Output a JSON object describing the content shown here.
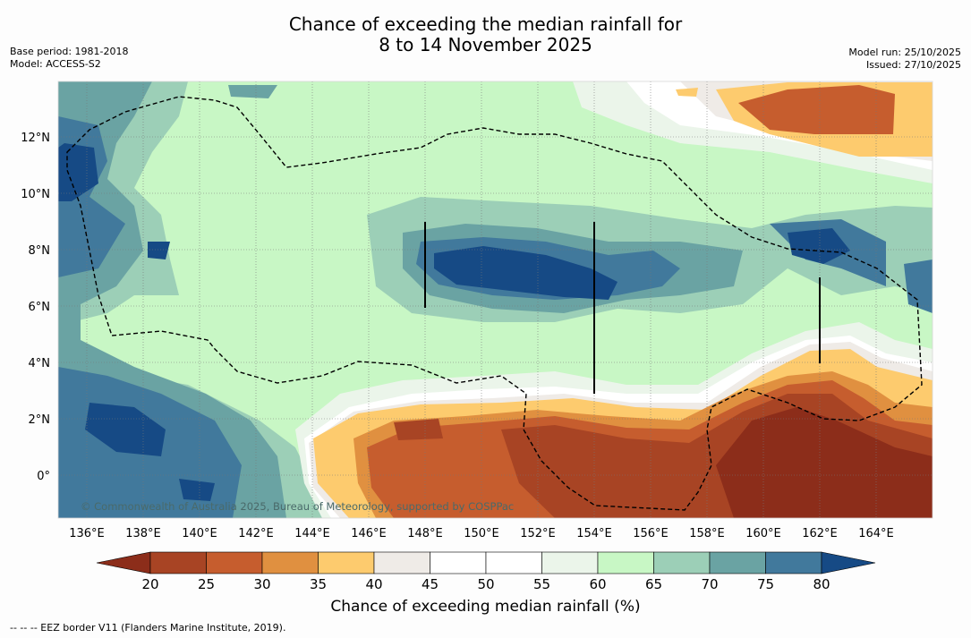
{
  "header": {
    "title_line1": "Chance of exceeding the median rainfall for",
    "title_line2": "8 to 14 November 2025",
    "base_period": "Base period: 1981-2018",
    "model": "Model: ACCESS-S2",
    "model_run": "Model run: 25/10/2025",
    "issued": "Issued: 27/10/2025"
  },
  "map": {
    "lat_labels": [
      "12°N",
      "10°N",
      "8°N",
      "6°N",
      "4°N",
      "2°N",
      "0°"
    ],
    "lon_labels": [
      "136°E",
      "138°E",
      "140°E",
      "142°E",
      "144°E",
      "146°E",
      "148°E",
      "150°E",
      "152°E",
      "154°E",
      "156°E",
      "158°E",
      "160°E",
      "162°E",
      "164°E"
    ],
    "copyright": "© Commonwealth of Australia 2025, Bureau of Meteorology, supported by COSPPac"
  },
  "colorbar": {
    "title": "Chance of exceeding median rainfall (%)",
    "ticks": [
      "20",
      "25",
      "30",
      "35",
      "40",
      "45",
      "50",
      "55",
      "60",
      "65",
      "70",
      "75",
      "80"
    ],
    "colors": [
      "#8c2d1a",
      "#a84424",
      "#c65d2e",
      "#e09040",
      "#fdcb6e",
      "#efebe7",
      "#ffffff",
      "#ffffff",
      "#ebf5ea",
      "#c8f7c5",
      "#9ccfb7",
      "#6aa3a3",
      "#41799c",
      "#164a85"
    ]
  },
  "footnote": "--  --  -- EEZ border V11 (Flanders Marine Institute, 2019)."
}
